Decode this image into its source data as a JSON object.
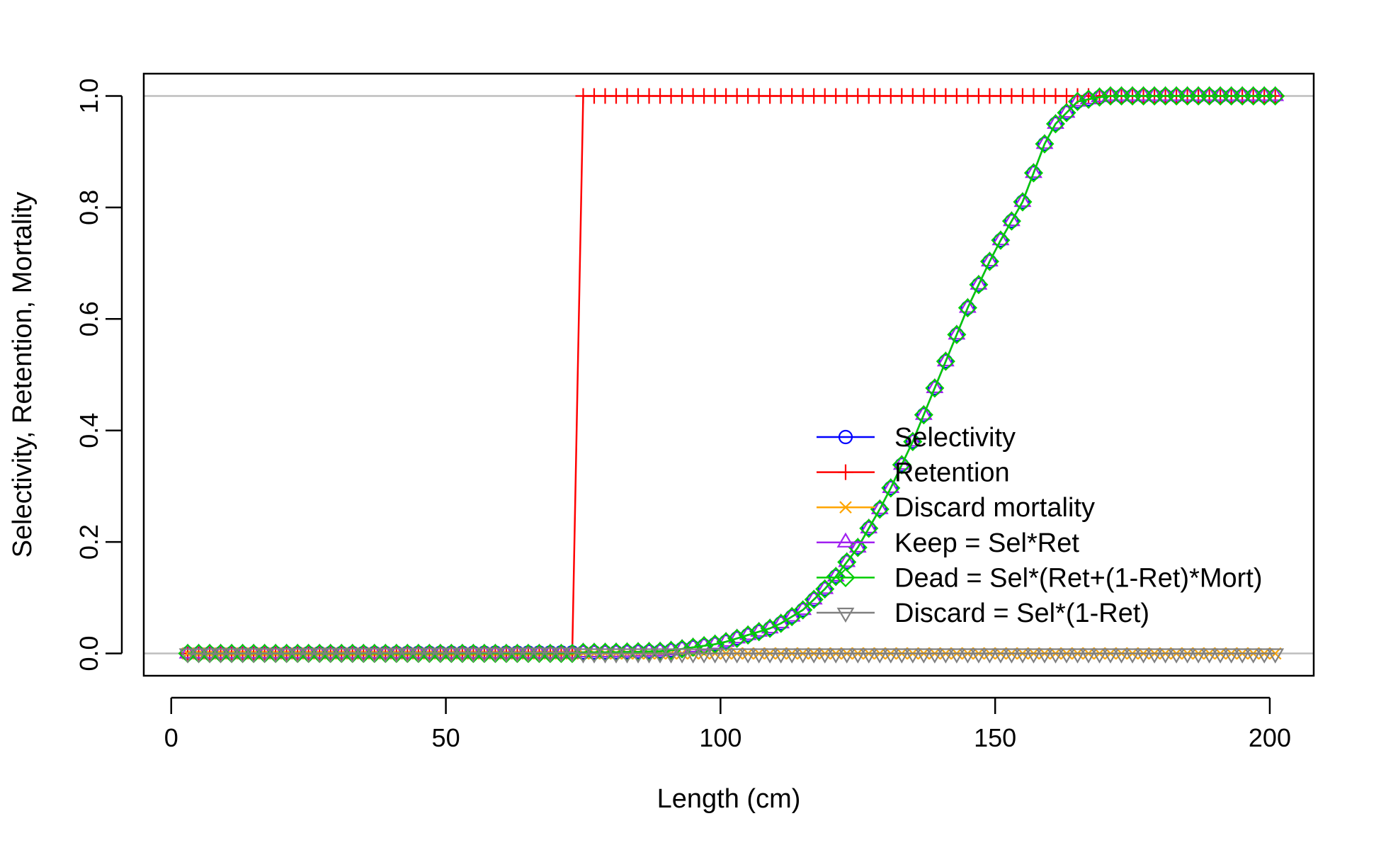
{
  "chart_data": {
    "type": "line",
    "title": "",
    "xlabel": "Length (cm)",
    "ylabel": "Selectivity, Retention, Mortality",
    "xlim": [
      -5,
      208
    ],
    "ylim": [
      -0.04,
      1.04
    ],
    "x_ticks": [
      {
        "value": 0,
        "label": "0"
      },
      {
        "value": 50,
        "label": "50"
      },
      {
        "value": 100,
        "label": "100"
      },
      {
        "value": 150,
        "label": "150"
      },
      {
        "value": 200,
        "label": "200"
      }
    ],
    "y_ticks": [
      {
        "value": 0.0,
        "label": "0.0"
      },
      {
        "value": 0.2,
        "label": "0.2"
      },
      {
        "value": 0.4,
        "label": "0.4"
      },
      {
        "value": 0.6,
        "label": "0.6"
      },
      {
        "value": 0.8,
        "label": "0.8"
      },
      {
        "value": 1.0,
        "label": "1.0"
      }
    ],
    "reference_lines": [
      0,
      1
    ],
    "reference_line_color": "#bebebe",
    "grid": false,
    "legend_position": "bottom-right",
    "length_bins": {
      "start": 3,
      "end": 201,
      "step": 2
    },
    "series": [
      {
        "name": "Selectivity",
        "color": "#0000ff",
        "marker": "circle",
        "function": "double-logistic ascending limb",
        "values_at_length": [
          [
            3,
            0
          ],
          [
            80,
            0.002
          ],
          [
            90,
            0.004
          ],
          [
            100,
            0.018
          ],
          [
            110,
            0.048
          ],
          [
            115,
            0.078
          ],
          [
            120,
            0.125
          ],
          [
            125,
            0.19
          ],
          [
            130,
            0.276
          ],
          [
            135,
            0.38
          ],
          [
            140,
            0.5
          ],
          [
            145,
            0.62
          ],
          [
            150,
            0.724
          ],
          [
            155,
            0.81
          ],
          [
            160,
            0.94
          ],
          [
            165,
            0.99
          ],
          [
            170,
            1.0
          ],
          [
            201,
            1.0
          ]
        ]
      },
      {
        "name": "Retention",
        "color": "#ff0000",
        "marker": "plus",
        "step_at_length": 74,
        "values_at_length": [
          [
            3,
            0
          ],
          [
            73,
            0
          ],
          [
            75,
            1
          ],
          [
            201,
            1
          ]
        ]
      },
      {
        "name": "Discard mortality",
        "color": "#ffa500",
        "marker": "x",
        "values_at_length": [
          [
            3,
            0
          ],
          [
            201,
            0
          ]
        ]
      },
      {
        "name": "Keep = Sel*Ret",
        "color": "#a020f0",
        "marker": "triangle-up",
        "derived": "selectivity * retention"
      },
      {
        "name": "Dead = Sel*(Ret+(1-Ret)*Mort)",
        "color": "#00cd00",
        "marker": "diamond",
        "derived": "selectivity * (retention + (1 - retention) * mortality)"
      },
      {
        "name": "Discard = Sel*(1-Ret)",
        "color": "#808080",
        "marker": "triangle-down",
        "derived": "selectivity * (1 - retention)"
      }
    ]
  }
}
